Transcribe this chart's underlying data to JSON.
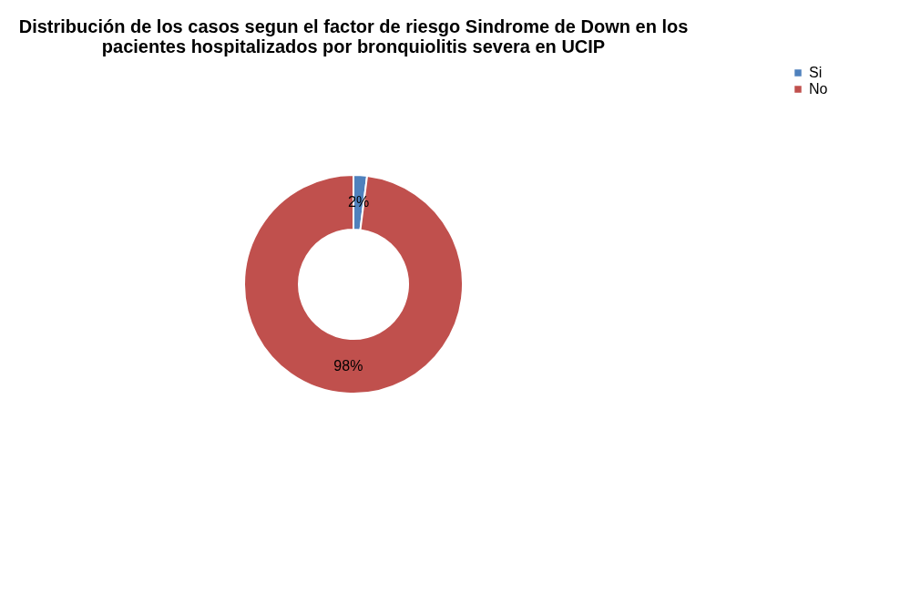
{
  "chart_data": {
    "type": "donut",
    "title": "Distribución de los casos segun el factor de riesgo Sindrome de Down en los pacientes hospitalizados por bronquiolitis severa en UCIP",
    "categories": [
      "Si",
      "No"
    ],
    "values": [
      2,
      98
    ],
    "colors": [
      "#4f81bd",
      "#c0504d"
    ],
    "value_labels": [
      "2%",
      "98%"
    ],
    "legend": "right"
  }
}
